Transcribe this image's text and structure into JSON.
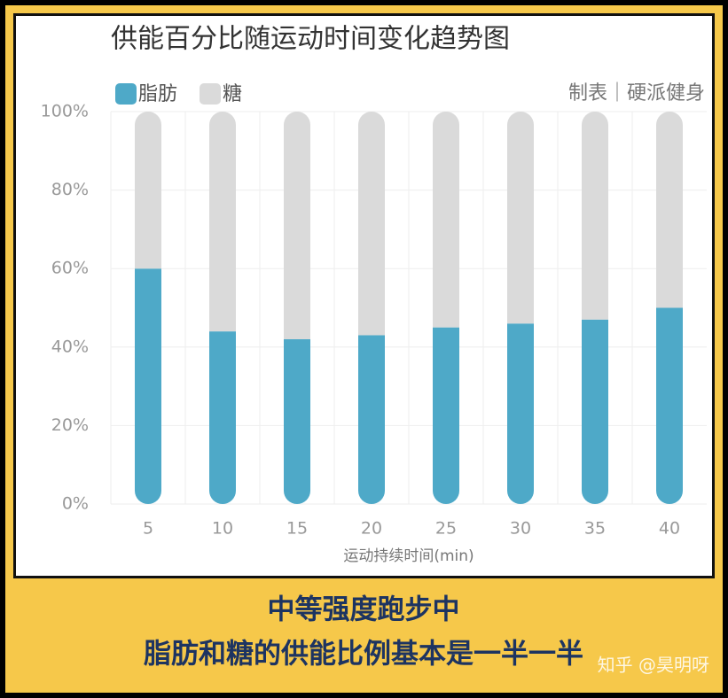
{
  "chart_data": {
    "type": "bar",
    "stacked": true,
    "title": "供能百分比随运动时间变化趋势图",
    "source": "制表｜硬派健身",
    "xlabel": "运动持续时间(min)",
    "categories": [
      "5",
      "10",
      "15",
      "20",
      "25",
      "30",
      "35",
      "40"
    ],
    "series": [
      {
        "name": "脂肪",
        "color": "#4ea9c8",
        "values": [
          60,
          44,
          42,
          43,
          45,
          46,
          47,
          50
        ]
      },
      {
        "name": "糖",
        "color": "#dadada",
        "values": [
          40,
          56,
          58,
          57,
          55,
          54,
          53,
          50
        ]
      }
    ],
    "ylim": [
      0,
      100
    ],
    "yticks": [
      {
        "value": 0,
        "label": "0%"
      },
      {
        "value": 20,
        "label": "20%"
      },
      {
        "value": 40,
        "label": "40%"
      },
      {
        "value": 60,
        "label": "60%"
      },
      {
        "value": 80,
        "label": "80%"
      },
      {
        "value": 100,
        "label": "100%"
      }
    ],
    "grid": true
  },
  "caption": [
    "中等强度跑步中",
    "脂肪和糖的供能比例基本是一半一半"
  ],
  "watermark": "知乎 @昊明呀"
}
